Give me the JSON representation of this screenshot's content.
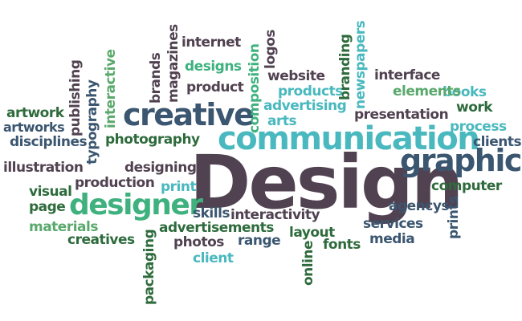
{
  "words": {
    "design": "Design",
    "communication": "communication",
    "graphic": "graphic",
    "creative": "creative",
    "designer": "designer",
    "artwork": "artwork",
    "artworks": "artworks",
    "disciplines": "disciplines",
    "illustration": "illustration",
    "visual": "visual",
    "page": "page",
    "materials": "materials",
    "creatives": "creatives",
    "production": "production",
    "designing": "designing",
    "print": "print",
    "photography": "photography",
    "skills": "skills",
    "interactivity": "interactivity",
    "advertisements": "advertisements",
    "photos": "photos",
    "range": "range",
    "client": "client",
    "layout": "layout",
    "fonts": "fonts",
    "agencys": "agencys",
    "services": "services",
    "media": "media",
    "computer": "computer",
    "clients": "clients",
    "process": "process",
    "presentation": "presentation",
    "work": "work",
    "books": "books",
    "elements": "elements",
    "interface": "interface",
    "products": "products",
    "advertising": "advertising",
    "arts": "arts",
    "website": "website",
    "internet": "internet",
    "designs": "designs",
    "product": "product",
    "publishing": "publishing",
    "typography": "typography",
    "interactive": "interactive",
    "brands": "brands",
    "magazines": "magazines",
    "composition": "composition",
    "logos": "logos",
    "branding": "branding",
    "newspapers": "newspapers",
    "packaging": "packaging",
    "online": "online",
    "prints": "prints"
  },
  "palette": {
    "dark": "#514251",
    "navy": "#3b5670",
    "teal": "#3fa5ae",
    "aqua": "#49b8bf",
    "green": "#2e6b3c",
    "mint": "#3fb17f",
    "sage": "#5aa96c"
  }
}
